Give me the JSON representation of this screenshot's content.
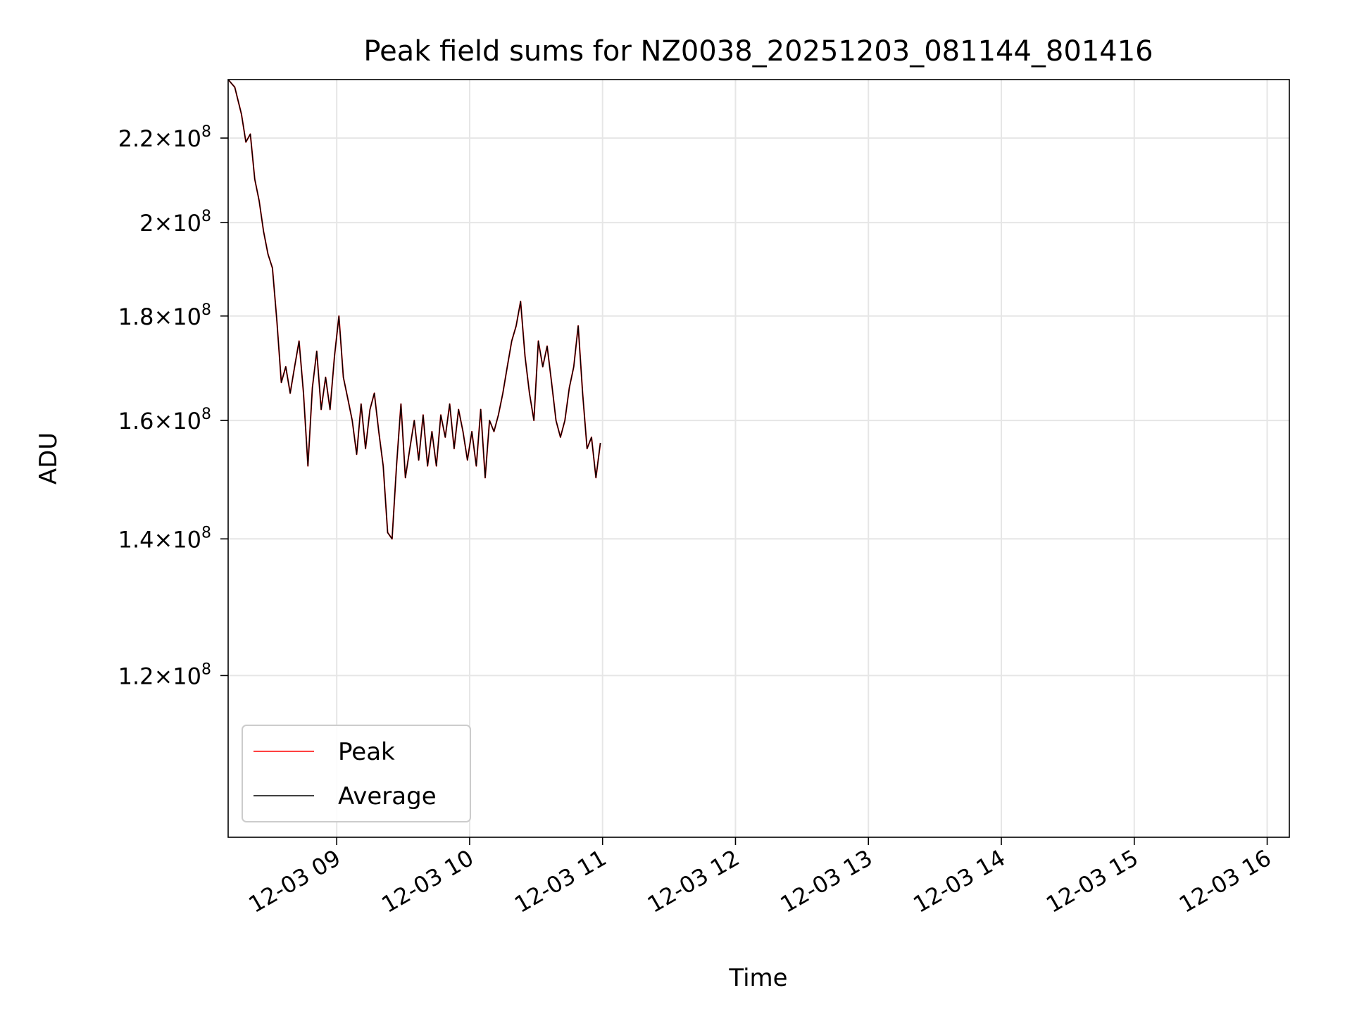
{
  "chart_data": {
    "type": "line",
    "title": "Peak field sums for NZ0038_20251203_081144_801416",
    "xlabel": "Time",
    "ylabel": "ADU",
    "yscale": "log",
    "xlim": [
      "2025-12-03 08:11",
      "2025-12-03 16:10"
    ],
    "ylim": [
      100000000,
      235000000
    ],
    "x_ticks": [
      "12-03 09",
      "12-03 10",
      "12-03 11",
      "12-03 12",
      "12-03 13",
      "12-03 14",
      "12-03 15",
      "12-03 16"
    ],
    "y_ticks": [
      {
        "value": 120000000,
        "mantissa": "1.2",
        "exp": "8"
      },
      {
        "value": 140000000,
        "mantissa": "1.4",
        "exp": "8"
      },
      {
        "value": 160000000,
        "mantissa": "1.6",
        "exp": "8"
      },
      {
        "value": 180000000,
        "mantissa": "1.8",
        "exp": "8"
      },
      {
        "value": 200000000,
        "mantissa": "2",
        "exp": "8"
      },
      {
        "value": 220000000,
        "mantissa": "2.2",
        "exp": "8"
      }
    ],
    "grid": true,
    "legend_position": "lower-left",
    "series": [
      {
        "name": "Peak",
        "color": "#ff0000",
        "points": [
          [
            "2025-12-03 08:11",
            235000000
          ],
          [
            "2025-12-03 08:14",
            233000000
          ],
          [
            "2025-12-03 08:17",
            226000000
          ],
          [
            "2025-12-03 08:19",
            219000000
          ],
          [
            "2025-12-03 08:21",
            221000000
          ],
          [
            "2025-12-03 08:23",
            210000000
          ],
          [
            "2025-12-03 08:25",
            205000000
          ],
          [
            "2025-12-03 08:27",
            198000000
          ],
          [
            "2025-12-03 08:29",
            193000000
          ],
          [
            "2025-12-03 08:31",
            190000000
          ],
          [
            "2025-12-03 08:33",
            179000000
          ],
          [
            "2025-12-03 08:35",
            167000000
          ],
          [
            "2025-12-03 08:37",
            170000000
          ],
          [
            "2025-12-03 08:39",
            165000000
          ],
          [
            "2025-12-03 08:41",
            170000000
          ],
          [
            "2025-12-03 08:43",
            175000000
          ],
          [
            "2025-12-03 08:45",
            165000000
          ],
          [
            "2025-12-03 08:47",
            152000000
          ],
          [
            "2025-12-03 08:49",
            166000000
          ],
          [
            "2025-12-03 08:51",
            173000000
          ],
          [
            "2025-12-03 08:53",
            162000000
          ],
          [
            "2025-12-03 08:55",
            168000000
          ],
          [
            "2025-12-03 08:57",
            162000000
          ],
          [
            "2025-12-03 08:59",
            172000000
          ],
          [
            "2025-12-03 09:01",
            180000000
          ],
          [
            "2025-12-03 09:03",
            168000000
          ],
          [
            "2025-12-03 09:05",
            164000000
          ],
          [
            "2025-12-03 09:07",
            160000000
          ],
          [
            "2025-12-03 09:09",
            154000000
          ],
          [
            "2025-12-03 09:11",
            163000000
          ],
          [
            "2025-12-03 09:13",
            155000000
          ],
          [
            "2025-12-03 09:15",
            162000000
          ],
          [
            "2025-12-03 09:17",
            165000000
          ],
          [
            "2025-12-03 09:19",
            158000000
          ],
          [
            "2025-12-03 09:21",
            152000000
          ],
          [
            "2025-12-03 09:23",
            141000000
          ],
          [
            "2025-12-03 09:25",
            140000000
          ],
          [
            "2025-12-03 09:27",
            152000000
          ],
          [
            "2025-12-03 09:29",
            163000000
          ],
          [
            "2025-12-03 09:31",
            150000000
          ],
          [
            "2025-12-03 09:33",
            155000000
          ],
          [
            "2025-12-03 09:35",
            160000000
          ],
          [
            "2025-12-03 09:37",
            153000000
          ],
          [
            "2025-12-03 09:39",
            161000000
          ],
          [
            "2025-12-03 09:41",
            152000000
          ],
          [
            "2025-12-03 09:43",
            158000000
          ],
          [
            "2025-12-03 09:45",
            152000000
          ],
          [
            "2025-12-03 09:47",
            161000000
          ],
          [
            "2025-12-03 09:49",
            157000000
          ],
          [
            "2025-12-03 09:51",
            163000000
          ],
          [
            "2025-12-03 09:53",
            155000000
          ],
          [
            "2025-12-03 09:55",
            162000000
          ],
          [
            "2025-12-03 09:57",
            158000000
          ],
          [
            "2025-12-03 09:59",
            153000000
          ],
          [
            "2025-12-03 10:01",
            158000000
          ],
          [
            "2025-12-03 10:03",
            152000000
          ],
          [
            "2025-12-03 10:05",
            162000000
          ],
          [
            "2025-12-03 10:07",
            150000000
          ],
          [
            "2025-12-03 10:09",
            160000000
          ],
          [
            "2025-12-03 10:11",
            158000000
          ],
          [
            "2025-12-03 10:13",
            161000000
          ],
          [
            "2025-12-03 10:15",
            165000000
          ],
          [
            "2025-12-03 10:17",
            170000000
          ],
          [
            "2025-12-03 10:19",
            175000000
          ],
          [
            "2025-12-03 10:21",
            178000000
          ],
          [
            "2025-12-03 10:23",
            183000000
          ],
          [
            "2025-12-03 10:25",
            172000000
          ],
          [
            "2025-12-03 10:27",
            165000000
          ],
          [
            "2025-12-03 10:29",
            160000000
          ],
          [
            "2025-12-03 10:31",
            175000000
          ],
          [
            "2025-12-03 10:33",
            170000000
          ],
          [
            "2025-12-03 10:35",
            174000000
          ],
          [
            "2025-12-03 10:37",
            167000000
          ],
          [
            "2025-12-03 10:39",
            160000000
          ],
          [
            "2025-12-03 10:41",
            157000000
          ],
          [
            "2025-12-03 10:43",
            160000000
          ],
          [
            "2025-12-03 10:45",
            166000000
          ],
          [
            "2025-12-03 10:47",
            170000000
          ],
          [
            "2025-12-03 10:49",
            178000000
          ],
          [
            "2025-12-03 10:51",
            165000000
          ],
          [
            "2025-12-03 10:53",
            155000000
          ],
          [
            "2025-12-03 10:55",
            157000000
          ],
          [
            "2025-12-03 10:57",
            150000000
          ],
          [
            "2025-12-03 10:59",
            156000000
          ]
        ]
      },
      {
        "name": "Average",
        "color": "#000000",
        "points": [
          [
            "2025-12-03 08:11",
            235000000
          ],
          [
            "2025-12-03 08:14",
            233000000
          ],
          [
            "2025-12-03 08:17",
            226000000
          ],
          [
            "2025-12-03 08:19",
            219000000
          ],
          [
            "2025-12-03 08:21",
            221000000
          ],
          [
            "2025-12-03 08:23",
            210000000
          ],
          [
            "2025-12-03 08:25",
            205000000
          ],
          [
            "2025-12-03 08:27",
            198000000
          ],
          [
            "2025-12-03 08:29",
            193000000
          ],
          [
            "2025-12-03 08:31",
            190000000
          ],
          [
            "2025-12-03 08:33",
            179000000
          ],
          [
            "2025-12-03 08:35",
            167000000
          ],
          [
            "2025-12-03 08:37",
            170000000
          ],
          [
            "2025-12-03 08:39",
            165000000
          ],
          [
            "2025-12-03 08:41",
            170000000
          ],
          [
            "2025-12-03 08:43",
            175000000
          ],
          [
            "2025-12-03 08:45",
            165000000
          ],
          [
            "2025-12-03 08:47",
            152000000
          ],
          [
            "2025-12-03 08:49",
            166000000
          ],
          [
            "2025-12-03 08:51",
            173000000
          ],
          [
            "2025-12-03 08:53",
            162000000
          ],
          [
            "2025-12-03 08:55",
            168000000
          ],
          [
            "2025-12-03 08:57",
            162000000
          ],
          [
            "2025-12-03 08:59",
            172000000
          ],
          [
            "2025-12-03 09:01",
            180000000
          ],
          [
            "2025-12-03 09:03",
            168000000
          ],
          [
            "2025-12-03 09:05",
            164000000
          ],
          [
            "2025-12-03 09:07",
            160000000
          ],
          [
            "2025-12-03 09:09",
            154000000
          ],
          [
            "2025-12-03 09:11",
            163000000
          ],
          [
            "2025-12-03 09:13",
            155000000
          ],
          [
            "2025-12-03 09:15",
            162000000
          ],
          [
            "2025-12-03 09:17",
            165000000
          ],
          [
            "2025-12-03 09:19",
            158000000
          ],
          [
            "2025-12-03 09:21",
            152000000
          ],
          [
            "2025-12-03 09:23",
            141000000
          ],
          [
            "2025-12-03 09:25",
            140000000
          ],
          [
            "2025-12-03 09:27",
            152000000
          ],
          [
            "2025-12-03 09:29",
            163000000
          ],
          [
            "2025-12-03 09:31",
            150000000
          ],
          [
            "2025-12-03 09:33",
            155000000
          ],
          [
            "2025-12-03 09:35",
            160000000
          ],
          [
            "2025-12-03 09:37",
            153000000
          ],
          [
            "2025-12-03 09:39",
            161000000
          ],
          [
            "2025-12-03 09:41",
            152000000
          ],
          [
            "2025-12-03 09:43",
            158000000
          ],
          [
            "2025-12-03 09:45",
            152000000
          ],
          [
            "2025-12-03 09:47",
            161000000
          ],
          [
            "2025-12-03 09:49",
            157000000
          ],
          [
            "2025-12-03 09:51",
            163000000
          ],
          [
            "2025-12-03 09:53",
            155000000
          ],
          [
            "2025-12-03 09:55",
            162000000
          ],
          [
            "2025-12-03 09:57",
            158000000
          ],
          [
            "2025-12-03 09:59",
            153000000
          ],
          [
            "2025-12-03 10:01",
            158000000
          ],
          [
            "2025-12-03 10:03",
            152000000
          ],
          [
            "2025-12-03 10:05",
            162000000
          ],
          [
            "2025-12-03 10:07",
            150000000
          ],
          [
            "2025-12-03 10:09",
            160000000
          ],
          [
            "2025-12-03 10:11",
            158000000
          ],
          [
            "2025-12-03 10:13",
            161000000
          ],
          [
            "2025-12-03 10:15",
            165000000
          ],
          [
            "2025-12-03 10:17",
            170000000
          ],
          [
            "2025-12-03 10:19",
            175000000
          ],
          [
            "2025-12-03 10:21",
            178000000
          ],
          [
            "2025-12-03 10:23",
            183000000
          ],
          [
            "2025-12-03 10:25",
            172000000
          ],
          [
            "2025-12-03 10:27",
            165000000
          ],
          [
            "2025-12-03 10:29",
            160000000
          ],
          [
            "2025-12-03 10:31",
            175000000
          ],
          [
            "2025-12-03 10:33",
            170000000
          ],
          [
            "2025-12-03 10:35",
            174000000
          ],
          [
            "2025-12-03 10:37",
            167000000
          ],
          [
            "2025-12-03 10:39",
            160000000
          ],
          [
            "2025-12-03 10:41",
            157000000
          ],
          [
            "2025-12-03 10:43",
            160000000
          ],
          [
            "2025-12-03 10:45",
            166000000
          ],
          [
            "2025-12-03 10:47",
            170000000
          ],
          [
            "2025-12-03 10:49",
            178000000
          ],
          [
            "2025-12-03 10:51",
            165000000
          ],
          [
            "2025-12-03 10:53",
            155000000
          ],
          [
            "2025-12-03 10:55",
            157000000
          ],
          [
            "2025-12-03 10:57",
            150000000
          ],
          [
            "2025-12-03 10:59",
            156000000
          ]
        ]
      }
    ]
  }
}
